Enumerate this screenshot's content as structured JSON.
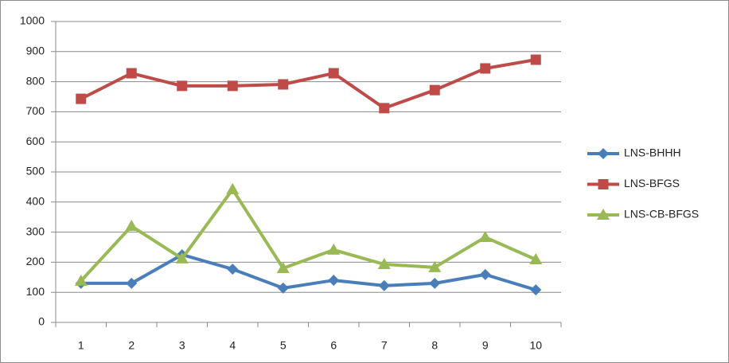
{
  "chart_data": {
    "type": "line",
    "categories": [
      1,
      2,
      3,
      4,
      5,
      6,
      7,
      8,
      9,
      10
    ],
    "series": [
      {
        "name": "LNS-BHHH",
        "color": "#4a7ebb",
        "marker": "diamond",
        "values": [
          130,
          130,
          225,
          177,
          114,
          140,
          122,
          130,
          159,
          108
        ]
      },
      {
        "name": "LNS-BFGS",
        "color": "#be4b48",
        "marker": "square",
        "values": [
          743,
          828,
          786,
          786,
          791,
          828,
          712,
          772,
          844,
          873
        ]
      },
      {
        "name": "LNS-CB-BFGS",
        "color": "#98b954",
        "marker": "triangle",
        "values": [
          138,
          320,
          212,
          442,
          180,
          241,
          193,
          183,
          283,
          209
        ]
      }
    ],
    "ylim": [
      0,
      1000
    ],
    "yticks": [
      0,
      100,
      200,
      300,
      400,
      500,
      600,
      700,
      800,
      900,
      1000
    ],
    "grid": true,
    "legend": "right"
  }
}
